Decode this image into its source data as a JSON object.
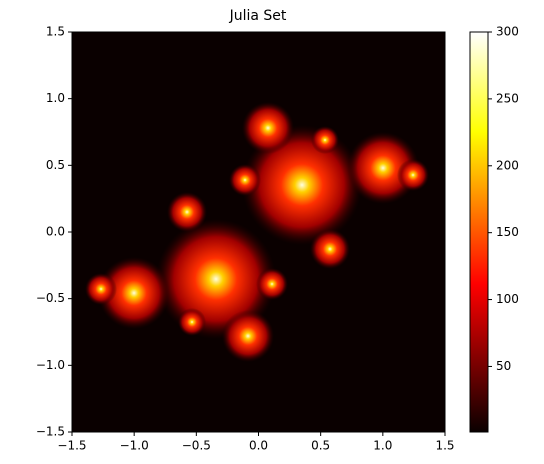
{
  "chart_data": {
    "type": "image",
    "title": "Julia Set",
    "xlim": [
      -1.5,
      1.5
    ],
    "xticks": [
      {
        "value": -1.5,
        "label": "−1.5"
      },
      {
        "value": -1.0,
        "label": "−1.0"
      },
      {
        "value": -0.5,
        "label": "−0.5"
      },
      {
        "value": 0.0,
        "label": "0.0"
      },
      {
        "value": 0.5,
        "label": "0.5"
      },
      {
        "value": 1.0,
        "label": "1.0"
      },
      {
        "value": 1.5,
        "label": "1.5"
      }
    ],
    "ylim": [
      -1.5,
      1.5
    ],
    "yticks": [
      {
        "value": -1.5,
        "label": "−1.5"
      },
      {
        "value": -1.0,
        "label": "−1.0"
      },
      {
        "value": -0.5,
        "label": "−0.5"
      },
      {
        "value": 0.0,
        "label": "0.0"
      },
      {
        "value": 0.5,
        "label": "0.5"
      },
      {
        "value": 1.0,
        "label": "1.0"
      },
      {
        "value": 1.5,
        "label": "1.5"
      }
    ],
    "colorbar": {
      "lim": [
        1,
        300
      ],
      "ticks": [
        50,
        100,
        150,
        200,
        250,
        300
      ],
      "colormap": "hot"
    }
  }
}
